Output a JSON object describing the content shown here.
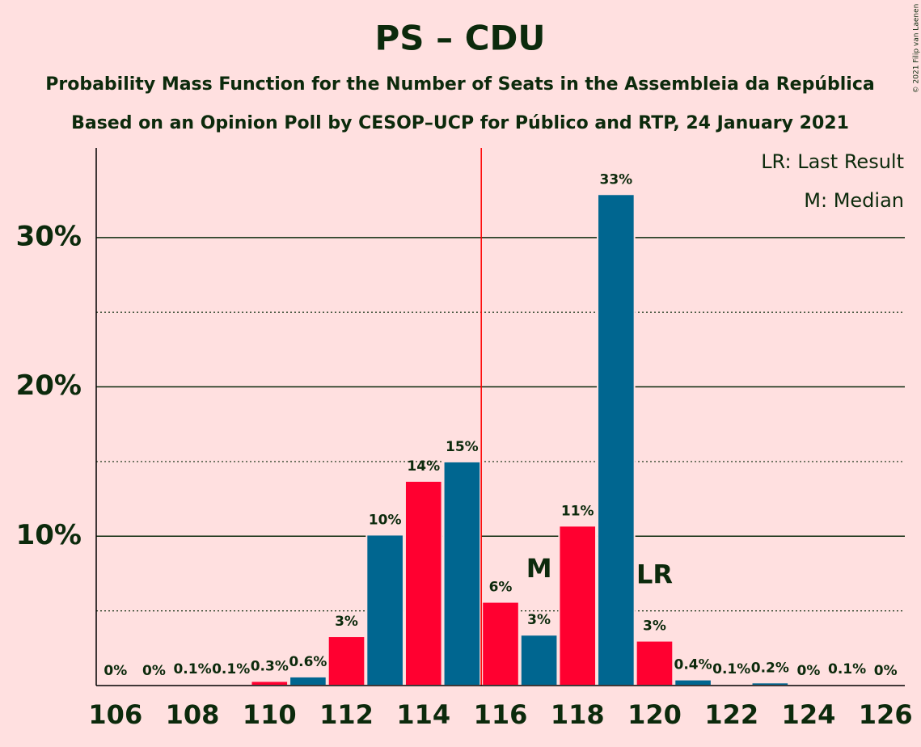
{
  "chart_data": {
    "type": "bar",
    "title": "PS – CDU",
    "subtitle": "Probability Mass Function for the Number of Seats in the Assembleia da República",
    "subtitle2": "Based on an Opinion Poll by CESOP–UCP for Público and RTP, 24 January 2021",
    "categories": [
      106,
      null,
      108,
      null,
      110,
      null,
      112,
      null,
      114,
      null,
      116,
      null,
      118,
      null,
      120,
      null,
      122,
      null,
      124,
      null,
      126
    ],
    "values": [
      0,
      0,
      0.1,
      0.1,
      0.3,
      0.6,
      3.3,
      10.1,
      13.7,
      15.0,
      5.6,
      3.4,
      10.7,
      32.9,
      3.0,
      0.4,
      0.1,
      0.2,
      0,
      0.1,
      0
    ],
    "value_labels": [
      "0%",
      "0%",
      "0.1%",
      "0.1%",
      "0.3%",
      "0.6%",
      "3%",
      "10%",
      "14%",
      "15%",
      "6%",
      "3%",
      "11%",
      "33%",
      "3%",
      "0.4%",
      "0.1%",
      "0.2%",
      "0%",
      "0.1%",
      "0%"
    ],
    "colors": [
      "#ff0030",
      "#006690",
      "#ff0030",
      "#006690",
      "#ff0030",
      "#006690",
      "#ff0030",
      "#006690",
      "#ff0030",
      "#006690",
      "#ff0030",
      "#006690",
      "#ff0030",
      "#006690",
      "#ff0030",
      "#006690",
      "#ff0030",
      "#006690",
      "#ff0030",
      "#006690",
      "#ff0030"
    ],
    "ylim": [
      0,
      36
    ],
    "yticks": [
      {
        "value": 10,
        "label": "10%"
      },
      {
        "value": 20,
        "label": "20%"
      },
      {
        "value": 30,
        "label": "30%"
      }
    ],
    "minor_yticks": [
      5,
      15,
      25
    ],
    "grid": true,
    "majority_index": 10,
    "annotations": [
      {
        "text": "M",
        "index": 11
      },
      {
        "text": "LR",
        "index": 14
      }
    ],
    "legend": [
      "LR: Last Result",
      "M: Median"
    ],
    "copyright": "© 2021 Filip van Laenen"
  }
}
